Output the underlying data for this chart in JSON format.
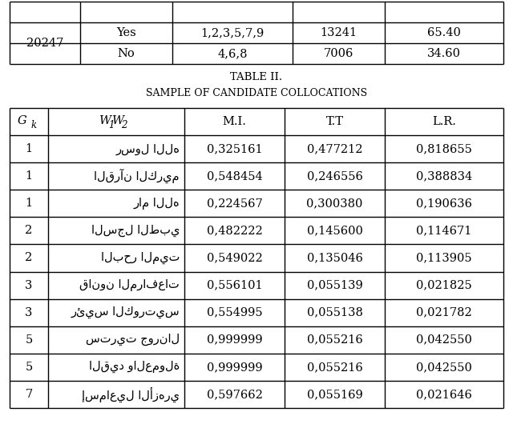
{
  "title1": "TABLE II.",
  "title2": "SAMPLE OF CANDIDATE COLLOCATIONS",
  "top_table_rows": [
    [
      "Yes",
      "1,2,3,5,7,9",
      "13241",
      "65.40"
    ],
    [
      "No",
      "4,6,8",
      "7006",
      "34.60"
    ]
  ],
  "top_col1": "20247",
  "headers_gk": "G",
  "headers_gk_sub": "k",
  "headers_w": "W",
  "headers_w1": "1",
  "headers_w2": "2",
  "headers_rest": [
    "M.I.",
    "T.T",
    "L.R."
  ],
  "rows": [
    [
      "1",
      "رسول الله",
      "0,325161",
      "0,477212",
      "0,818655"
    ],
    [
      "1",
      "القرآن الكريم",
      "0,548454",
      "0,246556",
      "0,388834"
    ],
    [
      "1",
      "رام الله",
      "0,224567",
      "0,300380",
      "0,190636"
    ],
    [
      "2",
      "السجل الطبي",
      "0,482222",
      "0,145600",
      "0,114671"
    ],
    [
      "2",
      "البحر الميت",
      "0,549022",
      "0,135046",
      "0,113905"
    ],
    [
      "3",
      "قانون المرافعات",
      "0,556101",
      "0,055139",
      "0,021825"
    ],
    [
      "3",
      "رئيس الكورتيس",
      "0,554995",
      "0,055138",
      "0,021782"
    ],
    [
      "5",
      "ستريت جورنال",
      "0,999999",
      "0,055216",
      "0,042550"
    ],
    [
      "5",
      "القيد والعمولة",
      "0,999999",
      "0,055216",
      "0,042550"
    ],
    [
      "7",
      "إسماعيل الأزهري",
      "0,597662",
      "0,055169",
      "0,021646"
    ]
  ],
  "bg_color": "#ffffff",
  "line_color": "#000000"
}
